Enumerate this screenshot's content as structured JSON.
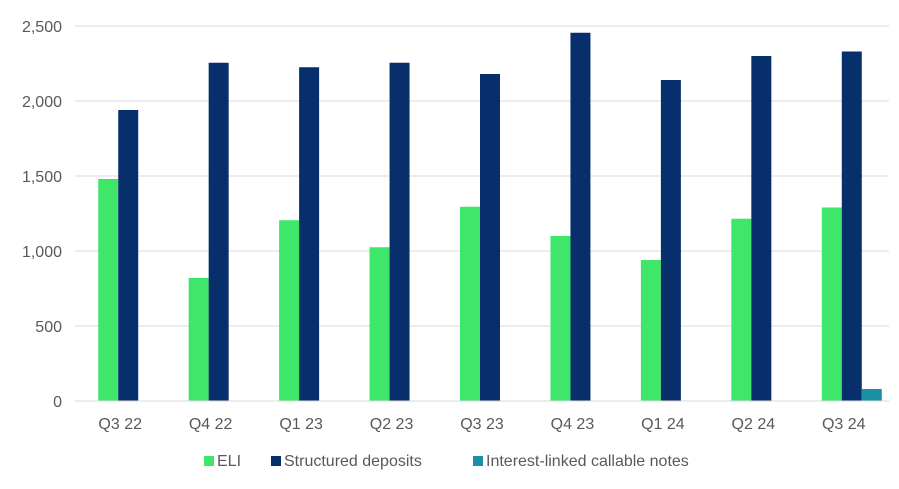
{
  "chart_data": {
    "type": "bar",
    "title": "",
    "xlabel": "",
    "ylabel": "",
    "ylim": [
      0,
      2500
    ],
    "yticks": [
      0,
      500,
      1000,
      1500,
      2000,
      2500
    ],
    "ytick_labels": [
      "0",
      "500",
      "1,000",
      "1,500",
      "2,000",
      "2,500"
    ],
    "grid": true,
    "legend_position": "bottom",
    "categories": [
      "Q3 22",
      "Q4 22",
      "Q1 23",
      "Q2 23",
      "Q3 23",
      "Q4 23",
      "Q1 24",
      "Q2 24",
      "Q3 24"
    ],
    "series": [
      {
        "name": "ELI",
        "color": "#3ee66a",
        "values": [
          1480,
          820,
          1205,
          1025,
          1295,
          1100,
          940,
          1215,
          1290
        ]
      },
      {
        "name": "Structured deposits",
        "color": "#072f6b",
        "values": [
          1940,
          2255,
          2225,
          2255,
          2180,
          2455,
          2140,
          2300,
          2330
        ]
      },
      {
        "name": "Interest-linked callable notes",
        "color": "#1b8fa6",
        "values": [
          0,
          0,
          0,
          0,
          0,
          0,
          0,
          0,
          80
        ]
      }
    ]
  }
}
